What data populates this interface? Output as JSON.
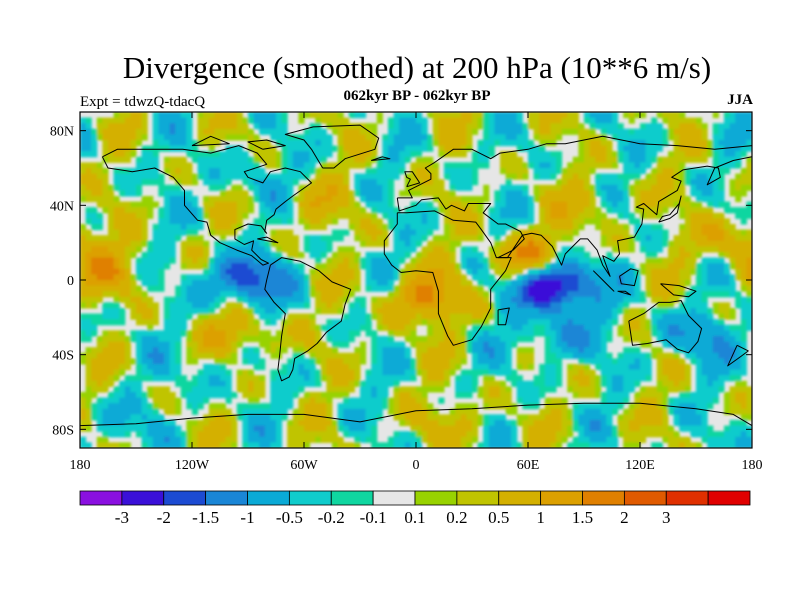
{
  "title": "Divergence (smoothed) at 200 hPa (10**6 m/s)",
  "subtitle": "062kyr BP - 062kyr BP",
  "left_label": "Expt = tdwzQ-tdacQ",
  "right_label": "JJA",
  "map": {
    "projection": "cylindrical-equidistant",
    "lon_range": [
      -180,
      180
    ],
    "lat_range": [
      -90,
      90
    ],
    "background_color": "#e6e6e6",
    "coastline_color": "#000000"
  },
  "lat_ticks": [
    {
      "value": 80,
      "label": "80N"
    },
    {
      "value": 40,
      "label": "40N"
    },
    {
      "value": 0,
      "label": "0"
    },
    {
      "value": -40,
      "label": "40S"
    },
    {
      "value": -80,
      "label": "80S"
    }
  ],
  "lon_ticks": [
    {
      "value": -180,
      "label": "180"
    },
    {
      "value": -120,
      "label": "120W"
    },
    {
      "value": -60,
      "label": "60W"
    },
    {
      "value": 0,
      "label": "0"
    },
    {
      "value": 60,
      "label": "60E"
    },
    {
      "value": 120,
      "label": "120E"
    },
    {
      "value": 180,
      "label": "180"
    }
  ],
  "colorbar": {
    "colors": [
      "#8a10e0",
      "#3a10d8",
      "#1c4bd2",
      "#1a86d6",
      "#0aaad6",
      "#10cccc",
      "#10d6a0",
      "#e6e6e6",
      "#98d200",
      "#c0c400",
      "#d4b000",
      "#dca000",
      "#e08000",
      "#e05a00",
      "#e03000",
      "#e00000"
    ],
    "labels": [
      "-3",
      "-2",
      "-1.5",
      "-1",
      "-0.5",
      "-0.2",
      "-0.1",
      "0.1",
      "0.2",
      "0.5",
      "1",
      "1.5",
      "2",
      "3"
    ]
  },
  "chart_data": {
    "type": "heatmap",
    "title": "Divergence (smoothed) at 200 hPa (10**6 m/s)",
    "subtitle": "062kyr BP - 062kyr BP",
    "season": "JJA",
    "levels": [
      -3,
      -2,
      -1.5,
      -1,
      -0.5,
      -0.2,
      -0.1,
      0.1,
      0.2,
      0.5,
      1,
      1.5,
      2,
      3
    ],
    "xlim": [
      -180,
      180
    ],
    "ylim": [
      -90,
      90
    ],
    "features": [
      {
        "lon": 75,
        "lat": -3,
        "value": -3
      },
      {
        "lon": -92,
        "lat": 0,
        "value": -2
      },
      {
        "lon": 60,
        "lat": 12,
        "value": 1.5
      },
      {
        "lon": 5,
        "lat": -10,
        "value": 1.5
      },
      {
        "lon": -165,
        "lat": 5,
        "value": 1
      },
      {
        "lon": -95,
        "lat": -30,
        "value": 1
      },
      {
        "lon": 170,
        "lat": 22,
        "value": 1
      },
      {
        "lon": -55,
        "lat": 40,
        "value": 0.5
      },
      {
        "lon": 95,
        "lat": 40,
        "value": 0.5
      },
      {
        "lon": 75,
        "lat": -30,
        "value": -1
      },
      {
        "lon": -110,
        "lat": -45,
        "value": -0.5
      },
      {
        "lon": -90,
        "lat": 55,
        "value": -0.5
      },
      {
        "lon": 150,
        "lat": -30,
        "value": -1
      },
      {
        "lon": 20,
        "lat": -75,
        "value": 0.5
      },
      {
        "lon": -160,
        "lat": -78,
        "value": -0.5
      }
    ]
  }
}
